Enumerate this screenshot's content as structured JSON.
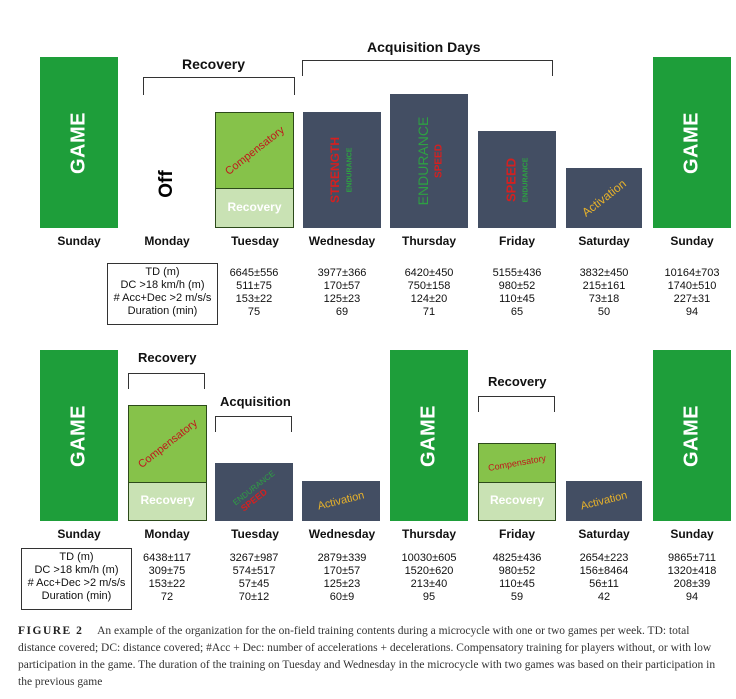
{
  "row1": {
    "headers": {
      "recovery": "Recovery",
      "acquisition": "Acquisition Days"
    },
    "blocks": {
      "sun1": "GAME",
      "mon": "Off",
      "tue_top": "Compensatory",
      "tue_bottom": "Recovery",
      "wed_main": "STRENGTH",
      "wed_sub": "ENDURANCE",
      "thu_main": "ENDURANCE",
      "thu_sub": "SPEED",
      "fri_main": "SPEED",
      "fri_sub": "ENDURANCE",
      "sat": "Activation",
      "sun2": "GAME"
    },
    "days": [
      "Sunday",
      "Monday",
      "Tuesday",
      "Wednesday",
      "Thursday",
      "Friday",
      "Saturday",
      "Sunday"
    ],
    "metric_labels": [
      "TD (m)",
      "DC >18 km/h (m)",
      "# Acc+Dec >2 m/s/s",
      "Duration (min)"
    ],
    "columns": [
      [
        "6645±556",
        "511±75",
        "153±22",
        "75"
      ],
      [
        "3977±366",
        "170±57",
        "125±23",
        "69"
      ],
      [
        "6420±450",
        "750±158",
        "124±20",
        "71"
      ],
      [
        "5155±436",
        "980±52",
        "110±45",
        "65"
      ],
      [
        "3832±450",
        "215±161",
        "73±18",
        "50"
      ],
      [
        "10164±703",
        "1740±510",
        "227±31",
        "94"
      ]
    ]
  },
  "row2": {
    "headers": {
      "recovery1": "Recovery",
      "acquisition": "Acquisition",
      "recovery2": "Recovery"
    },
    "blocks": {
      "sun1": "GAME",
      "mon_top": "Compensatory",
      "mon_bottom": "Recovery",
      "tue_main": "ENDURANCE",
      "tue_sub": "SPEED",
      "wed": "Activation",
      "thu": "GAME",
      "fri_top": "Compensatory",
      "fri_bottom": "Recovery",
      "sat": "Activation",
      "sun2": "GAME"
    },
    "days": [
      "Sunday",
      "Monday",
      "Tuesday",
      "Wednesday",
      "Thursday",
      "Friday",
      "Saturday",
      "Sunday"
    ],
    "metric_labels": [
      "TD (m)",
      "DC >18 km/h (m)",
      "# Acc+Dec >2 m/s/s",
      "Duration (min)"
    ],
    "columns": [
      [
        "6438±117",
        "309±75",
        "153±22",
        "72"
      ],
      [
        "3267±987",
        "574±517",
        "57±45",
        "70±12"
      ],
      [
        "2879±339",
        "170±57",
        "125±23",
        "60±9"
      ],
      [
        "10030±605",
        "1520±620",
        "213±40",
        "95"
      ],
      [
        "4825±436",
        "980±52",
        "110±45",
        "59"
      ],
      [
        "2654±223",
        "156±8464",
        "56±11",
        "42"
      ],
      [
        "9865±711",
        "1320±418",
        "208±39",
        "94"
      ]
    ]
  },
  "caption": {
    "label": "FIGURE 2",
    "text": "An example of the organization for the on-field training contents during a microcycle with one or two games per week. TD: total distance covered; DC: distance covered; #Acc + Dec: number of accelerations + decelerations. Compensatory training for players without, or with low participation in the game. The duration of the training on Tuesday and Wednesday in the microcycle with two games was based on their participation in the previous game"
  },
  "colors": {
    "game": "#1e9e3a",
    "slate": "#434e63",
    "compensatory": "#86c24a",
    "recovery": "#c9e2b4",
    "strength": "#d42020",
    "endurance_green": "#2ea043",
    "activation": "#e8b22a"
  }
}
